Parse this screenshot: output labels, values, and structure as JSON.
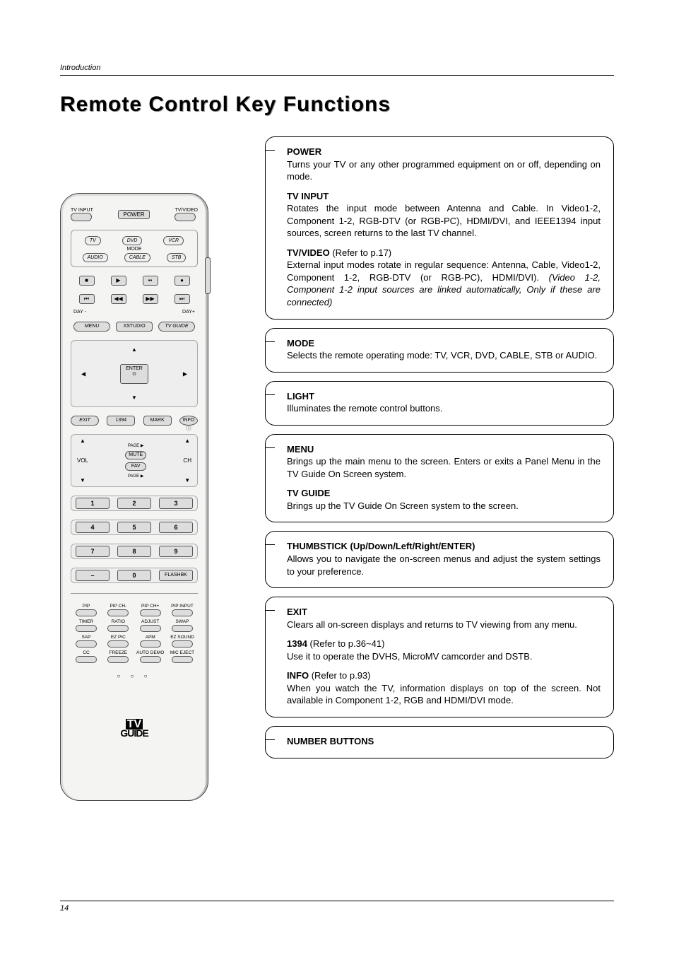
{
  "section": "Introduction",
  "page_title": "Remote Control Key Functions",
  "page_number": "14",
  "remote": {
    "tv_input": "TV INPUT",
    "tv_video": "TV/VIDEO",
    "power": "POWER",
    "mode": {
      "tv": "TV",
      "dvd": "DVD",
      "vcr": "VCR",
      "audio": "AUDIO",
      "cable": "CABLE",
      "stb": "STB",
      "label": "MODE"
    },
    "transport": {
      "stop": "■",
      "play": "▶",
      "pause": "▪▪",
      "rec": "●",
      "skipback": "⏮",
      "rew": "◀◀",
      "ff": "▶▶",
      "skipfwd": "⏭",
      "day_minus": "DAY -",
      "day_plus": "DAY+"
    },
    "trio": {
      "menu": "MENU",
      "xstudio": "XSTUDIO",
      "tvguide": "TV GUIDE"
    },
    "dpad": {
      "up": "▲",
      "down": "▼",
      "left": "◀",
      "right": "▶",
      "enter": "ENTER",
      "dot": "⊙"
    },
    "row4": {
      "exit": "EXIT",
      "b1394": "1394",
      "mark": "MARK",
      "info": "INFO ⓘ"
    },
    "volch": {
      "vol": "VOL",
      "ch": "CH",
      "mute": "MUTE",
      "fav": "FAV",
      "page": "PAGE",
      "up": "▲",
      "down": "▼"
    },
    "numbers": {
      "1": "1",
      "2": "2",
      "3": "3",
      "4": "4",
      "5": "5",
      "6": "6",
      "7": "7",
      "8": "8",
      "9": "9",
      "dash": "–",
      "0": "0",
      "flashbk": "FLASHBK"
    },
    "funcs": {
      "r1": [
        "PIP",
        "PIP CH-",
        "PIP CH+",
        "PIP INPUT"
      ],
      "r2": [
        "TIMER",
        "RATIO",
        "ADJUST",
        "SWAP"
      ],
      "r3": [
        "SAP",
        "EZ PIC",
        "APM",
        "EZ SOUND"
      ],
      "r4": [
        "CC",
        "FREEZE",
        "AUTO DEMO",
        "M/C EJECT"
      ]
    },
    "logo_tv": "TV",
    "logo_guide": "GUIDE"
  },
  "boxes": [
    {
      "items": [
        {
          "title": "POWER",
          "body": "Turns your TV or any other programmed equipment on or off, depending on mode."
        },
        {
          "title": "TV INPUT",
          "body": "Rotates the input mode between Antenna and Cable. In Video1-2, Component 1-2, RGB-DTV (or RGB-PC), HDMI/DVI, and IEEE1394 input sources, screen returns to the last TV channel.",
          "justify": true
        },
        {
          "title": "TV/VIDEO",
          "ref": "(Refer to p.17)",
          "body": "External input modes rotate in regular sequence: Antenna, Cable, Video1-2, Component 1-2, RGB-DTV (or RGB-PC), HDMI/DVI).",
          "ital": "(Video 1-2, Component 1-2 input sources are linked automatically, Only if these are connected)",
          "justify": true
        }
      ]
    },
    {
      "items": [
        {
          "title": "MODE",
          "body": "Selects the remote operating mode: TV, VCR, DVD, CABLE, STB or AUDIO."
        }
      ]
    },
    {
      "items": [
        {
          "title": "LIGHT",
          "body": "Illuminates the remote control buttons."
        }
      ]
    },
    {
      "items": [
        {
          "title": "MENU",
          "body": "Brings up the main menu to the screen. Enters or exits a Panel Menu in the TV Guide On Screen system."
        },
        {
          "title": "TV GUIDE",
          "body": "Brings up the TV Guide On Screen system to the screen."
        }
      ]
    },
    {
      "items": [
        {
          "title": "THUMBSTICK (Up/Down/Left/Right/ENTER)",
          "body": "Allows you to navigate the on-screen menus and adjust the system settings to your preference."
        }
      ]
    },
    {
      "items": [
        {
          "title": "EXIT",
          "body": "Clears all on-screen displays and returns to TV viewing from any menu."
        },
        {
          "title": "1394",
          "ref": "(Refer to p.36~41)",
          "body": "Use it to operate the DVHS, MicroMV camcorder and DSTB."
        },
        {
          "title": "INFO",
          "ref": "(Refer to p.93)",
          "body": "When you watch the TV, information displays on top of the screen. Not available in Component 1-2, RGB and HDMI/DVI mode.",
          "justify": true
        }
      ]
    },
    {
      "items": [
        {
          "title": "NUMBER BUTTONS",
          "body": ""
        }
      ]
    }
  ],
  "colors": {
    "bg": "#ffffff",
    "text": "#000000",
    "remote_bg": "#f4f4f2",
    "btn_bg": "#dddddd",
    "border": "#000000"
  }
}
